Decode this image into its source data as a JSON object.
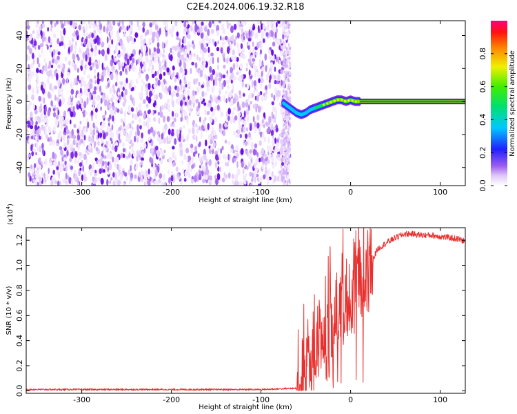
{
  "title": "C2E4.2024.006.19.32.R18",
  "chart_data": [
    {
      "type": "heatmap",
      "xlabel": "Height of straight line (km)",
      "ylabel": "Frequency (Hz)",
      "xlim": [
        -362,
        128
      ],
      "ylim": [
        -51,
        49
      ],
      "xticks": [
        -300,
        -200,
        -100,
        0,
        100
      ],
      "xtick_labels": [
        "-300",
        "-200",
        "-100",
        "0",
        "100"
      ],
      "yticks": [
        -40,
        -20,
        0,
        20,
        40
      ],
      "ytick_labels": [
        "-40",
        "-20",
        "0",
        "20",
        "40"
      ],
      "noise_region_km": [
        -362,
        -72
      ],
      "doppler_trace": [
        {
          "x": -75,
          "y": -1
        },
        {
          "x": -70,
          "y": -3
        },
        {
          "x": -65,
          "y": -5
        },
        {
          "x": -60,
          "y": -7
        },
        {
          "x": -55,
          "y": -8
        },
        {
          "x": -50,
          "y": -7
        },
        {
          "x": -45,
          "y": -5
        },
        {
          "x": -40,
          "y": -4
        },
        {
          "x": -35,
          "y": -3
        },
        {
          "x": -30,
          "y": -2
        },
        {
          "x": -25,
          "y": -1
        },
        {
          "x": -20,
          "y": 0
        },
        {
          "x": -15,
          "y": 1
        },
        {
          "x": -10,
          "y": 1
        },
        {
          "x": -5,
          "y": 0
        },
        {
          "x": 0,
          "y": 1
        },
        {
          "x": 5,
          "y": 0
        },
        {
          "x": 10,
          "y": 0
        },
        {
          "x": 128,
          "y": 0
        }
      ],
      "steady_tone_start_km": 10,
      "colorbar": {
        "label": "Normalized spectral amplitude",
        "range": [
          0.0,
          1.0
        ],
        "ticks": [
          0.0,
          0.2,
          0.4,
          0.6,
          0.8
        ],
        "tick_labels": [
          "0.0",
          "0.2",
          "0.4",
          "0.6",
          "0.8"
        ]
      }
    },
    {
      "type": "line",
      "xlabel": "Height of straight line (km)",
      "ylabel": "SNR (10 * v/v)",
      "yscale_label": "(x10",
      "yscale_exp": "4",
      "yscale_close": ")",
      "xlim": [
        -362,
        128
      ],
      "ylim": [
        -0.02,
        1.3
      ],
      "xticks": [
        -300,
        -200,
        -100,
        0,
        100
      ],
      "xtick_labels": [
        "-300",
        "-200",
        "-100",
        "0",
        "100"
      ],
      "yticks": [
        0.0,
        0.2,
        0.4,
        0.6,
        0.8,
        1.0,
        1.2
      ],
      "ytick_labels": [
        "0.0",
        "0.2",
        "0.4",
        "0.6",
        "0.8",
        "1.0",
        "1.2"
      ],
      "color": "#e8312f",
      "series": [
        {
          "x": [
            -362,
            -300,
            -200,
            -100,
            -60,
            -50,
            -45,
            -40,
            -35,
            -30,
            -25,
            -20,
            -15,
            -10,
            -5,
            0,
            5,
            10,
            15,
            20,
            25,
            30,
            40,
            50,
            60,
            70,
            80,
            90,
            100,
            110,
            120,
            128
          ],
          "values": [
            0.01,
            0.01,
            0.01,
            0.01,
            0.02,
            0.12,
            0.3,
            0.38,
            0.42,
            0.45,
            0.52,
            0.6,
            0.65,
            0.7,
            0.75,
            0.82,
            0.86,
            0.88,
            0.9,
            0.95,
            1.05,
            1.13,
            1.18,
            1.22,
            1.25,
            1.25,
            1.24,
            1.24,
            1.23,
            1.22,
            1.21,
            1.19
          ]
        }
      ]
    }
  ]
}
